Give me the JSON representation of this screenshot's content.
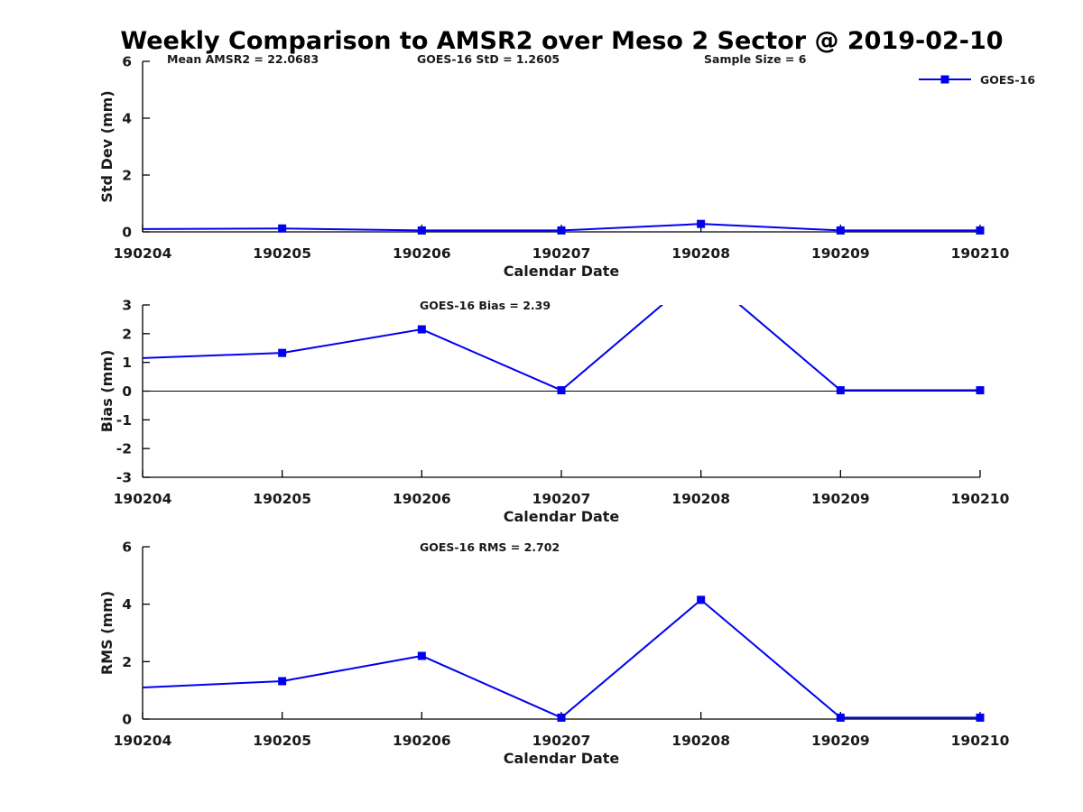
{
  "title": "Weekly Comparison to AMSR2 over Meso 2 Sector @ 2019-02-10",
  "colors": {
    "series": "#0000EE",
    "axis": "#000000",
    "text": "#1a1a1a"
  },
  "legend": {
    "label": "GOES-16",
    "color": "#0000EE",
    "marker": "square"
  },
  "stats": {
    "mean_amsr2": "22.0683",
    "goes16_std": "1.2605",
    "sample_size": "6",
    "goes16_bias": "2.39",
    "goes16_rms": "2.702"
  },
  "chart_data": [
    {
      "type": "line",
      "name": "std-dev",
      "ylabel": "Std Dev (mm)",
      "xlabel": "Calendar Date",
      "ylim": [
        0,
        6
      ],
      "yticks": [
        0,
        2,
        4,
        6
      ],
      "categories": [
        "190204",
        "190205",
        "190206",
        "190207",
        "190208",
        "190209",
        "190210"
      ],
      "series": [
        {
          "name": "GOES-16",
          "values": [
            0.1,
            0.12,
            0.05,
            0.05,
            0.28,
            0.05,
            0.05
          ]
        }
      ],
      "annotations": [
        "Mean AMSR2 = 22.0683",
        "GOES-16 StD = 1.2605",
        "Sample Size = 6"
      ],
      "marker": "square",
      "first_point_marker": false,
      "zero_line": false,
      "grid": false,
      "legend_position": "top-right-outside"
    },
    {
      "type": "line",
      "name": "bias",
      "ylabel": "Bias (mm)",
      "xlabel": "Calendar Date",
      "ylim": [
        -3,
        3
      ],
      "yticks": [
        -3,
        -2,
        -1,
        0,
        1,
        2,
        3
      ],
      "categories": [
        "190204",
        "190205",
        "190206",
        "190207",
        "190208",
        "190209",
        "190210"
      ],
      "series": [
        {
          "name": "GOES-16",
          "values": [
            1.15,
            1.33,
            2.15,
            0.03,
            4.15,
            0.03,
            0.03
          ]
        }
      ],
      "annotations": [
        "GOES-16 Bias  = 2.39"
      ],
      "marker": "square",
      "first_point_marker": false,
      "zero_line": true,
      "grid": false,
      "note": "peak at 190208 exceeds ylim and is clipped at top of axes"
    },
    {
      "type": "line",
      "name": "rms",
      "ylabel": "RMS (mm)",
      "xlabel": "Calendar Date",
      "ylim": [
        0,
        6
      ],
      "yticks": [
        0,
        2,
        4,
        6
      ],
      "categories": [
        "190204",
        "190205",
        "190206",
        "190207",
        "190208",
        "190209",
        "190210"
      ],
      "series": [
        {
          "name": "GOES-16",
          "values": [
            1.1,
            1.32,
            2.2,
            0.05,
            4.15,
            0.05,
            0.05
          ]
        }
      ],
      "annotations": [
        "GOES-16 RMS = 2.702"
      ],
      "marker": "square",
      "first_point_marker": false,
      "zero_line": false,
      "grid": false
    }
  ]
}
